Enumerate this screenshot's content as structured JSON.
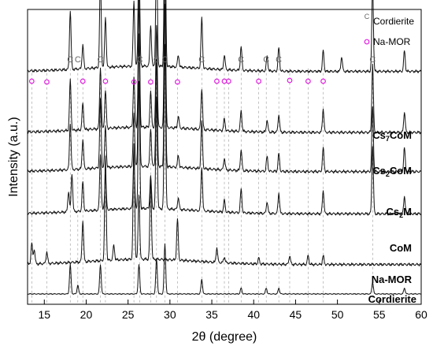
{
  "chart_data": {
    "type": "line",
    "title": "",
    "xlabel": "2θ (degree)",
    "ylabel": "Intensity (a.u.)",
    "xlim": [
      13,
      60
    ],
    "x_ticks": [
      15,
      20,
      25,
      30,
      35,
      40,
      45,
      50,
      55,
      60
    ],
    "grid": false,
    "legend": {
      "placement": "top-right",
      "entries": [
        {
          "symbol": "C",
          "label": "Cordierite",
          "color": "#666666"
        },
        {
          "symbol": "circle",
          "label": "Na-MOR",
          "color": "#e21fe2"
        }
      ]
    },
    "phase_markers": {
      "cordierite": [
        18.1,
        19.0,
        21.7,
        26.4,
        28.4,
        29.4,
        33.8,
        38.5,
        41.5,
        43.0,
        54.2
      ],
      "na_mor": [
        13.5,
        15.3,
        19.6,
        22.3,
        25.7,
        27.7,
        30.9,
        35.6,
        36.5,
        37.0,
        40.6,
        44.3,
        46.5,
        48.3
      ]
    },
    "series": [
      {
        "name": "Cs7CoM",
        "label_main": "Cs",
        "label_sub": "7",
        "label_tail": "CoM",
        "baseline": 0.79,
        "peaks": [
          [
            18.1,
            0.2
          ],
          [
            19.6,
            0.08
          ],
          [
            21.7,
            0.32
          ],
          [
            22.3,
            0.17
          ],
          [
            25.7,
            0.22
          ],
          [
            26.3,
            0.43
          ],
          [
            27.7,
            0.14
          ],
          [
            28.4,
            0.42
          ],
          [
            29.4,
            0.58
          ],
          [
            31.0,
            0.04
          ],
          [
            33.8,
            0.17
          ],
          [
            36.5,
            0.05
          ],
          [
            38.5,
            0.08
          ],
          [
            41.6,
            0.05
          ],
          [
            43.0,
            0.08
          ],
          [
            48.3,
            0.07
          ],
          [
            50.5,
            0.05
          ],
          [
            54.2,
            0.3
          ],
          [
            58.0,
            0.07
          ]
        ]
      },
      {
        "name": "Cs2CoM",
        "label_main": "Cs",
        "label_sub": "2",
        "label_tail": "CoM",
        "baseline": 0.583,
        "peaks": [
          [
            18.1,
            0.17
          ],
          [
            19.6,
            0.09
          ],
          [
            21.7,
            0.21
          ],
          [
            22.3,
            0.13
          ],
          [
            25.7,
            0.17
          ],
          [
            26.3,
            0.43
          ],
          [
            27.7,
            0.12
          ],
          [
            28.4,
            0.35
          ],
          [
            29.4,
            0.55
          ],
          [
            31.0,
            0.04
          ],
          [
            33.8,
            0.14
          ],
          [
            36.5,
            0.04
          ],
          [
            38.5,
            0.07
          ],
          [
            41.6,
            0.04
          ],
          [
            43.0,
            0.06
          ],
          [
            48.3,
            0.08
          ],
          [
            54.2,
            0.23
          ],
          [
            58.0,
            0.07
          ]
        ]
      },
      {
        "name": "Cs2M",
        "label_main": "Cs",
        "label_sub": "2",
        "label_tail": "M",
        "baseline": 0.45,
        "peaks": [
          [
            18.1,
            0.16
          ],
          [
            19.6,
            0.1
          ],
          [
            21.7,
            0.23
          ],
          [
            22.3,
            0.14
          ],
          [
            25.7,
            0.18
          ],
          [
            26.3,
            0.45
          ],
          [
            27.7,
            0.13
          ],
          [
            28.4,
            0.36
          ],
          [
            29.4,
            0.55
          ],
          [
            31.0,
            0.04
          ],
          [
            33.8,
            0.16
          ],
          [
            36.5,
            0.04
          ],
          [
            38.5,
            0.07
          ],
          [
            41.6,
            0.05
          ],
          [
            43.0,
            0.06
          ],
          [
            48.3,
            0.08
          ],
          [
            54.2,
            0.22
          ],
          [
            58.0,
            0.08
          ]
        ]
      },
      {
        "name": "CoM",
        "label_main": "CoM",
        "label_sub": "",
        "label_tail": "",
        "baseline": 0.307,
        "peaks": [
          [
            17.9,
            0.07
          ],
          [
            18.3,
            0.13
          ],
          [
            19.6,
            0.1
          ],
          [
            21.7,
            0.19
          ],
          [
            22.3,
            0.12
          ],
          [
            25.7,
            0.17
          ],
          [
            26.3,
            0.43
          ],
          [
            27.7,
            0.11
          ],
          [
            28.4,
            0.38
          ],
          [
            29.4,
            0.56
          ],
          [
            31.0,
            0.04
          ],
          [
            33.8,
            0.15
          ],
          [
            36.5,
            0.04
          ],
          [
            38.5,
            0.08
          ],
          [
            41.6,
            0.04
          ],
          [
            43.0,
            0.07
          ],
          [
            48.3,
            0.08
          ],
          [
            54.2,
            0.23
          ],
          [
            58.0,
            0.06
          ]
        ]
      },
      {
        "name": "Na-MOR",
        "label_main": "Na-MOR",
        "label_sub": "",
        "label_tail": "",
        "baseline": 0.135,
        "peaks": [
          [
            13.5,
            0.07
          ],
          [
            13.8,
            0.05
          ],
          [
            15.3,
            0.04
          ],
          [
            19.6,
            0.14
          ],
          [
            22.3,
            0.35
          ],
          [
            23.3,
            0.05
          ],
          [
            25.7,
            0.39
          ],
          [
            26.3,
            0.22
          ],
          [
            27.7,
            0.28
          ],
          [
            30.9,
            0.14
          ],
          [
            35.6,
            0.05
          ],
          [
            36.5,
            0.02
          ],
          [
            40.6,
            0.02
          ],
          [
            44.3,
            0.03
          ],
          [
            46.5,
            0.03
          ],
          [
            48.3,
            0.03
          ]
        ]
      },
      {
        "name": "Cordierite",
        "label_main": "Cordierite",
        "label_sub": "",
        "label_tail": "",
        "baseline": 0.035,
        "peaks": [
          [
            18.1,
            0.1
          ],
          [
            19.0,
            0.03
          ],
          [
            21.7,
            0.1
          ],
          [
            26.3,
            0.1
          ],
          [
            28.4,
            0.12
          ],
          [
            29.4,
            0.17
          ],
          [
            33.8,
            0.05
          ],
          [
            38.5,
            0.02
          ],
          [
            41.5,
            0.02
          ],
          [
            43.0,
            0.02
          ],
          [
            54.2,
            0.04
          ],
          [
            58.0,
            0.02
          ]
        ]
      }
    ]
  }
}
